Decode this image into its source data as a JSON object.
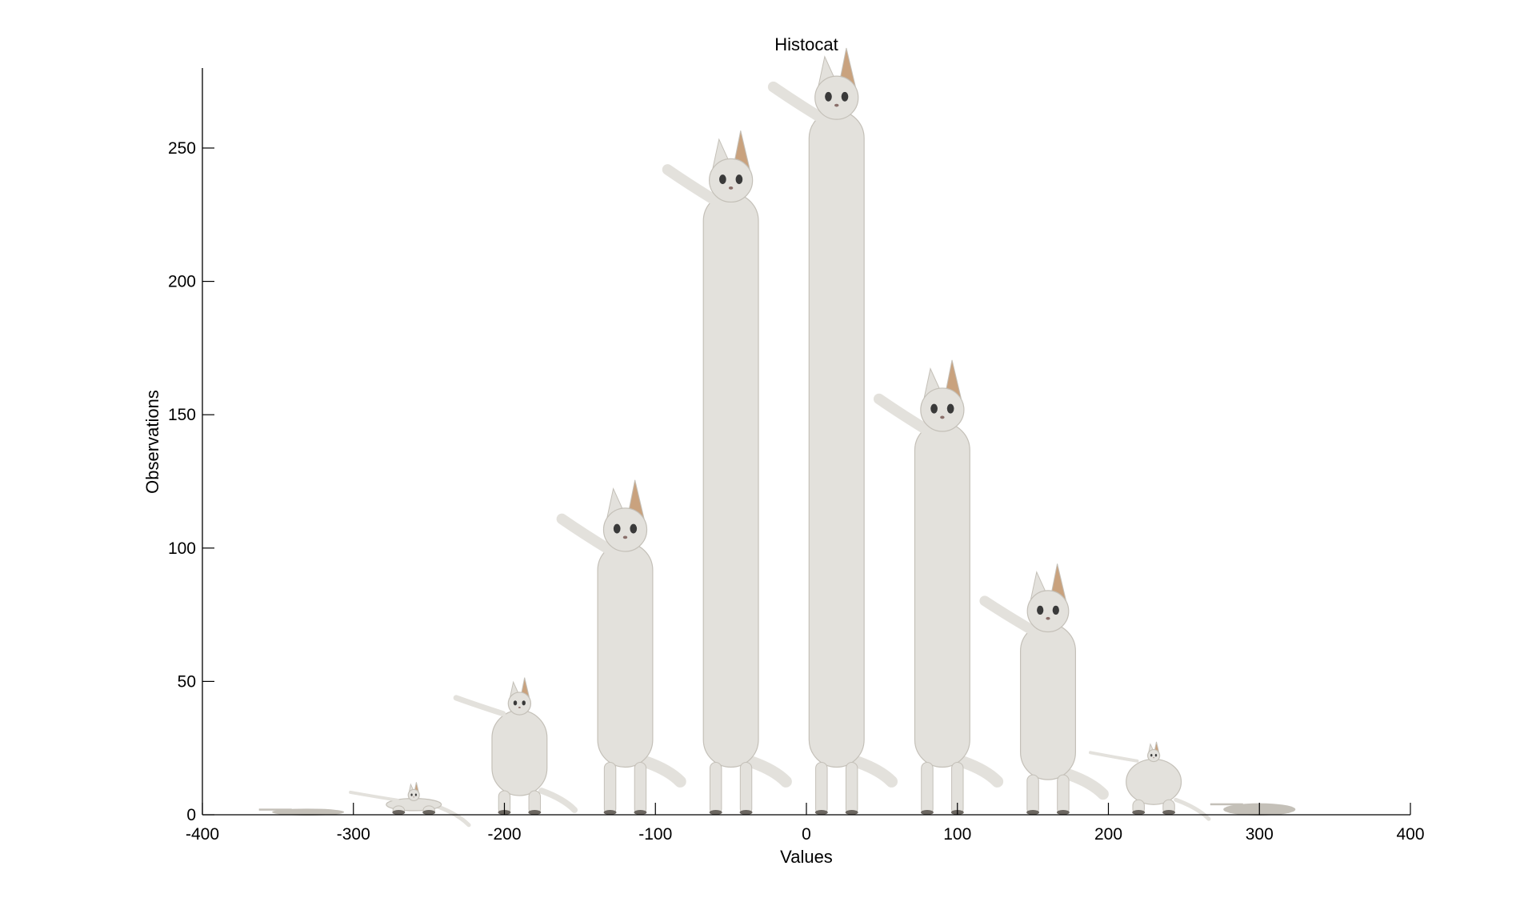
{
  "chart_data": {
    "type": "bar",
    "title": "Histocat",
    "xlabel": "Values",
    "ylabel": "Observations",
    "xlim": [
      -400,
      400
    ],
    "ylim": [
      0,
      280
    ],
    "x_ticks": [
      -400,
      -300,
      -200,
      -100,
      0,
      100,
      200,
      300,
      400
    ],
    "y_ticks": [
      0,
      50,
      100,
      150,
      200,
      250
    ],
    "bin_width": 70,
    "bins": [
      {
        "center": -330,
        "value": 2
      },
      {
        "center": -260,
        "value": 10
      },
      {
        "center": -190,
        "value": 47
      },
      {
        "center": -120,
        "value": 117
      },
      {
        "center": -50,
        "value": 248
      },
      {
        "center": 20,
        "value": 279
      },
      {
        "center": 90,
        "value": 162
      },
      {
        "center": 160,
        "value": 86
      },
      {
        "center": 230,
        "value": 25
      },
      {
        "center": 300,
        "value": 4
      }
    ],
    "bar_style": "cat",
    "colors": {
      "fur": "#e3e1dc",
      "fur_shade": "#c4c0b8",
      "ear_inner": "#c9a27e",
      "eye": "#3a3a3a",
      "axis": "#000000"
    }
  }
}
